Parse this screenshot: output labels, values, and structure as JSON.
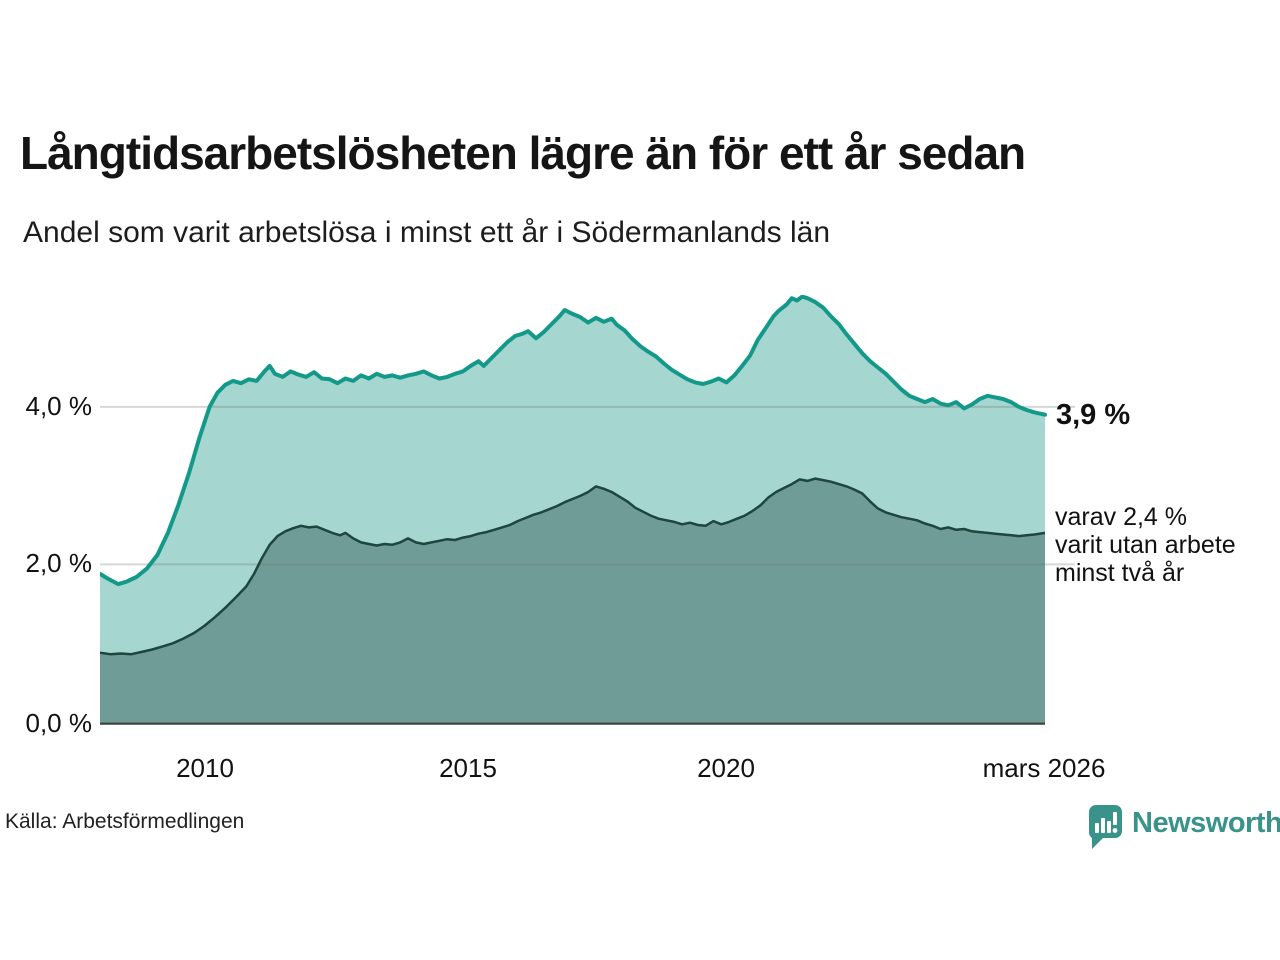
{
  "header": {
    "title": "Långtidsarbetslösheten lägre än för ett år sedan",
    "subtitle": "Andel som varit arbetslösa i minst ett år i Södermanlands län"
  },
  "axes": {
    "y_tick_labels": [
      "4,0 %",
      "2,0 %",
      "0,0 %"
    ],
    "x_tick_labels": [
      "2010",
      "2015",
      "2020",
      "mars 2026"
    ]
  },
  "annotations": {
    "end_label_primary": "3,9 %",
    "end_label_secondary_lines": [
      "varav 2,4 %",
      "varit utan arbete",
      "minst två år"
    ]
  },
  "footer": {
    "source": "Källa: Arbetsförmedlingen",
    "brand": "Newsworthy"
  },
  "colors": {
    "line_one_year": "#13998a",
    "fill_one_year": "#a5d6cf",
    "line_two_years": "#1f453f",
    "fill_two_years": "#6f9c96",
    "baseline": "#39433f",
    "gridline": "rgba(110,110,110,0.28)",
    "brand_teal": "#3a938a"
  },
  "chart_data": {
    "type": "area",
    "title": "Långtidsarbetslösheten lägre än för ett år sedan",
    "subtitle": "Andel som varit arbetslösa i minst ett år i Södermanlands län",
    "source": "Källa: Arbetsförmedlingen",
    "unit": "percent of workforce",
    "xlim": [
      2008.1,
      2026.2
    ],
    "ylim": [
      0,
      5.42
    ],
    "y_gridlines": [
      2,
      4
    ],
    "grid": "horizontal only, drawn over fills",
    "legend_position": "right-edge direct labels",
    "x_ticks": [
      2010,
      2015,
      2020,
      2026.2
    ],
    "x_tick_labels": [
      "2010",
      "2015",
      "2020",
      "mars 2026"
    ],
    "y_tick_values": [
      0,
      2,
      4
    ],
    "y_tick_labels": [
      "0,0 %",
      "2,0 %",
      "4,0 %"
    ],
    "series": [
      {
        "name": "Andel som varit arbetslösa minst ett år",
        "end_label": "3,9 %",
        "last_value": 3.9,
        "points": [
          [
            2008.1,
            1.88
          ],
          [
            2008.25,
            1.82
          ],
          [
            2008.45,
            1.75
          ],
          [
            2008.6,
            1.78
          ],
          [
            2008.8,
            1.84
          ],
          [
            2009.0,
            1.95
          ],
          [
            2009.2,
            2.12
          ],
          [
            2009.4,
            2.4
          ],
          [
            2009.6,
            2.75
          ],
          [
            2009.8,
            3.15
          ],
          [
            2010.0,
            3.6
          ],
          [
            2010.2,
            4.0
          ],
          [
            2010.35,
            4.18
          ],
          [
            2010.5,
            4.28
          ],
          [
            2010.65,
            4.33
          ],
          [
            2010.8,
            4.3
          ],
          [
            2010.95,
            4.35
          ],
          [
            2011.1,
            4.33
          ],
          [
            2011.25,
            4.45
          ],
          [
            2011.35,
            4.52
          ],
          [
            2011.45,
            4.42
          ],
          [
            2011.6,
            4.38
          ],
          [
            2011.75,
            4.45
          ],
          [
            2011.9,
            4.41
          ],
          [
            2012.05,
            4.38
          ],
          [
            2012.2,
            4.44
          ],
          [
            2012.35,
            4.36
          ],
          [
            2012.5,
            4.35
          ],
          [
            2012.65,
            4.3
          ],
          [
            2012.8,
            4.36
          ],
          [
            2012.95,
            4.33
          ],
          [
            2013.1,
            4.4
          ],
          [
            2013.25,
            4.36
          ],
          [
            2013.4,
            4.42
          ],
          [
            2013.55,
            4.38
          ],
          [
            2013.7,
            4.4
          ],
          [
            2013.85,
            4.37
          ],
          [
            2014.0,
            4.4
          ],
          [
            2014.15,
            4.42
          ],
          [
            2014.3,
            4.45
          ],
          [
            2014.45,
            4.4
          ],
          [
            2014.6,
            4.36
          ],
          [
            2014.75,
            4.38
          ],
          [
            2014.9,
            4.42
          ],
          [
            2015.05,
            4.45
          ],
          [
            2015.2,
            4.52
          ],
          [
            2015.35,
            4.58
          ],
          [
            2015.45,
            4.52
          ],
          [
            2015.6,
            4.62
          ],
          [
            2015.75,
            4.72
          ],
          [
            2015.9,
            4.82
          ],
          [
            2016.05,
            4.9
          ],
          [
            2016.2,
            4.93
          ],
          [
            2016.3,
            4.96
          ],
          [
            2016.45,
            4.87
          ],
          [
            2016.6,
            4.95
          ],
          [
            2016.75,
            5.05
          ],
          [
            2016.9,
            5.15
          ],
          [
            2017.0,
            5.23
          ],
          [
            2017.15,
            5.18
          ],
          [
            2017.3,
            5.14
          ],
          [
            2017.45,
            5.07
          ],
          [
            2017.6,
            5.13
          ],
          [
            2017.75,
            5.08
          ],
          [
            2017.9,
            5.12
          ],
          [
            2018.0,
            5.04
          ],
          [
            2018.15,
            4.97
          ],
          [
            2018.3,
            4.86
          ],
          [
            2018.45,
            4.77
          ],
          [
            2018.6,
            4.7
          ],
          [
            2018.75,
            4.64
          ],
          [
            2018.9,
            4.55
          ],
          [
            2019.05,
            4.47
          ],
          [
            2019.2,
            4.41
          ],
          [
            2019.35,
            4.35
          ],
          [
            2019.5,
            4.31
          ],
          [
            2019.65,
            4.29
          ],
          [
            2019.8,
            4.32
          ],
          [
            2019.95,
            4.36
          ],
          [
            2020.1,
            4.31
          ],
          [
            2020.25,
            4.4
          ],
          [
            2020.4,
            4.52
          ],
          [
            2020.55,
            4.65
          ],
          [
            2020.7,
            4.85
          ],
          [
            2020.85,
            5.0
          ],
          [
            2021.0,
            5.15
          ],
          [
            2021.1,
            5.22
          ],
          [
            2021.25,
            5.3
          ],
          [
            2021.35,
            5.38
          ],
          [
            2021.45,
            5.35
          ],
          [
            2021.55,
            5.4
          ],
          [
            2021.65,
            5.38
          ],
          [
            2021.8,
            5.33
          ],
          [
            2021.95,
            5.26
          ],
          [
            2022.1,
            5.15
          ],
          [
            2022.25,
            5.05
          ],
          [
            2022.4,
            4.92
          ],
          [
            2022.55,
            4.8
          ],
          [
            2022.7,
            4.68
          ],
          [
            2022.85,
            4.58
          ],
          [
            2023.0,
            4.5
          ],
          [
            2023.15,
            4.42
          ],
          [
            2023.3,
            4.32
          ],
          [
            2023.45,
            4.22
          ],
          [
            2023.6,
            4.14
          ],
          [
            2023.75,
            4.1
          ],
          [
            2023.9,
            4.06
          ],
          [
            2024.05,
            4.1
          ],
          [
            2024.2,
            4.04
          ],
          [
            2024.35,
            4.02
          ],
          [
            2024.5,
            4.06
          ],
          [
            2024.65,
            3.98
          ],
          [
            2024.8,
            4.03
          ],
          [
            2024.95,
            4.1
          ],
          [
            2025.1,
            4.14
          ],
          [
            2025.25,
            4.12
          ],
          [
            2025.4,
            4.1
          ],
          [
            2025.55,
            4.06
          ],
          [
            2025.7,
            4.0
          ],
          [
            2025.85,
            3.96
          ],
          [
            2026.0,
            3.93
          ],
          [
            2026.2,
            3.9
          ]
        ]
      },
      {
        "name": "varav varit utan arbete minst två år",
        "end_label": "varav 2,4 % varit utan arbete minst två år",
        "last_value": 2.4,
        "points": [
          [
            2008.1,
            0.88
          ],
          [
            2008.3,
            0.86
          ],
          [
            2008.5,
            0.87
          ],
          [
            2008.7,
            0.86
          ],
          [
            2008.9,
            0.89
          ],
          [
            2009.1,
            0.92
          ],
          [
            2009.3,
            0.96
          ],
          [
            2009.5,
            1.0
          ],
          [
            2009.7,
            1.06
          ],
          [
            2009.9,
            1.13
          ],
          [
            2010.1,
            1.22
          ],
          [
            2010.3,
            1.33
          ],
          [
            2010.5,
            1.45
          ],
          [
            2010.7,
            1.58
          ],
          [
            2010.9,
            1.72
          ],
          [
            2011.05,
            1.88
          ],
          [
            2011.2,
            2.08
          ],
          [
            2011.35,
            2.25
          ],
          [
            2011.5,
            2.36
          ],
          [
            2011.65,
            2.42
          ],
          [
            2011.8,
            2.46
          ],
          [
            2011.95,
            2.49
          ],
          [
            2012.1,
            2.47
          ],
          [
            2012.25,
            2.48
          ],
          [
            2012.4,
            2.44
          ],
          [
            2012.55,
            2.4
          ],
          [
            2012.7,
            2.37
          ],
          [
            2012.8,
            2.4
          ],
          [
            2012.95,
            2.33
          ],
          [
            2013.1,
            2.28
          ],
          [
            2013.25,
            2.26
          ],
          [
            2013.4,
            2.24
          ],
          [
            2013.55,
            2.26
          ],
          [
            2013.7,
            2.25
          ],
          [
            2013.85,
            2.28
          ],
          [
            2014.0,
            2.33
          ],
          [
            2014.15,
            2.28
          ],
          [
            2014.3,
            2.26
          ],
          [
            2014.45,
            2.28
          ],
          [
            2014.6,
            2.3
          ],
          [
            2014.75,
            2.32
          ],
          [
            2014.9,
            2.31
          ],
          [
            2015.05,
            2.34
          ],
          [
            2015.2,
            2.36
          ],
          [
            2015.35,
            2.39
          ],
          [
            2015.5,
            2.41
          ],
          [
            2015.65,
            2.44
          ],
          [
            2015.8,
            2.47
          ],
          [
            2015.95,
            2.5
          ],
          [
            2016.1,
            2.55
          ],
          [
            2016.25,
            2.59
          ],
          [
            2016.4,
            2.63
          ],
          [
            2016.55,
            2.66
          ],
          [
            2016.7,
            2.7
          ],
          [
            2016.85,
            2.74
          ],
          [
            2017.0,
            2.79
          ],
          [
            2017.15,
            2.83
          ],
          [
            2017.3,
            2.87
          ],
          [
            2017.45,
            2.92
          ],
          [
            2017.6,
            2.99
          ],
          [
            2017.75,
            2.96
          ],
          [
            2017.9,
            2.92
          ],
          [
            2018.05,
            2.86
          ],
          [
            2018.2,
            2.8
          ],
          [
            2018.35,
            2.72
          ],
          [
            2018.5,
            2.67
          ],
          [
            2018.65,
            2.62
          ],
          [
            2018.8,
            2.58
          ],
          [
            2018.95,
            2.56
          ],
          [
            2019.1,
            2.54
          ],
          [
            2019.25,
            2.51
          ],
          [
            2019.4,
            2.53
          ],
          [
            2019.55,
            2.5
          ],
          [
            2019.7,
            2.49
          ],
          [
            2019.85,
            2.55
          ],
          [
            2020.0,
            2.51
          ],
          [
            2020.15,
            2.54
          ],
          [
            2020.3,
            2.58
          ],
          [
            2020.45,
            2.62
          ],
          [
            2020.6,
            2.68
          ],
          [
            2020.75,
            2.75
          ],
          [
            2020.9,
            2.85
          ],
          [
            2021.05,
            2.92
          ],
          [
            2021.2,
            2.97
          ],
          [
            2021.35,
            3.02
          ],
          [
            2021.5,
            3.08
          ],
          [
            2021.65,
            3.06
          ],
          [
            2021.8,
            3.09
          ],
          [
            2021.95,
            3.07
          ],
          [
            2022.1,
            3.05
          ],
          [
            2022.25,
            3.02
          ],
          [
            2022.4,
            2.99
          ],
          [
            2022.55,
            2.95
          ],
          [
            2022.7,
            2.9
          ],
          [
            2022.85,
            2.8
          ],
          [
            2023.0,
            2.71
          ],
          [
            2023.15,
            2.66
          ],
          [
            2023.3,
            2.63
          ],
          [
            2023.45,
            2.6
          ],
          [
            2023.6,
            2.58
          ],
          [
            2023.75,
            2.56
          ],
          [
            2023.9,
            2.52
          ],
          [
            2024.05,
            2.49
          ],
          [
            2024.2,
            2.45
          ],
          [
            2024.35,
            2.47
          ],
          [
            2024.5,
            2.44
          ],
          [
            2024.65,
            2.45
          ],
          [
            2024.8,
            2.42
          ],
          [
            2024.95,
            2.41
          ],
          [
            2025.1,
            2.4
          ],
          [
            2025.25,
            2.39
          ],
          [
            2025.4,
            2.38
          ],
          [
            2025.55,
            2.37
          ],
          [
            2025.7,
            2.36
          ],
          [
            2025.85,
            2.37
          ],
          [
            2026.0,
            2.38
          ],
          [
            2026.2,
            2.4
          ]
        ]
      }
    ]
  }
}
